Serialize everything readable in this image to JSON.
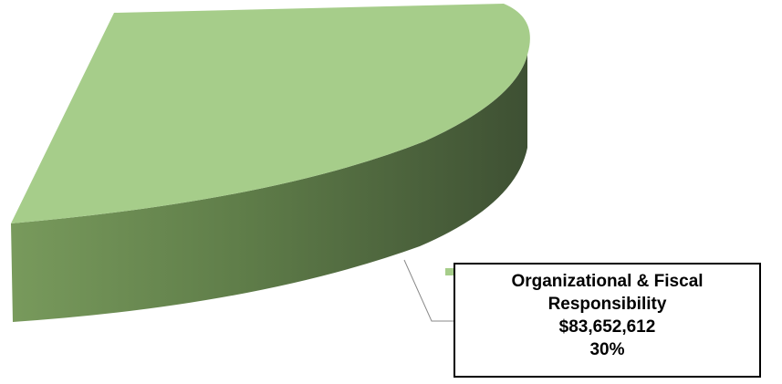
{
  "chart_data": {
    "type": "pie",
    "style": "3d",
    "slices": [
      {
        "label": "Organizational & Fiscal Responsibility",
        "label_lines": [
          "Organizational & Fiscal",
          "Responsibility"
        ],
        "value_text": "$83,652,612",
        "value": 83652612,
        "percent_text": "30%",
        "percent": 30,
        "color": "#a6cd8a",
        "side_color_light": "#789a5c",
        "side_color_dark": "#3e5033"
      }
    ],
    "legend": "none",
    "data_label_placement": "bottom-right with leader line"
  }
}
